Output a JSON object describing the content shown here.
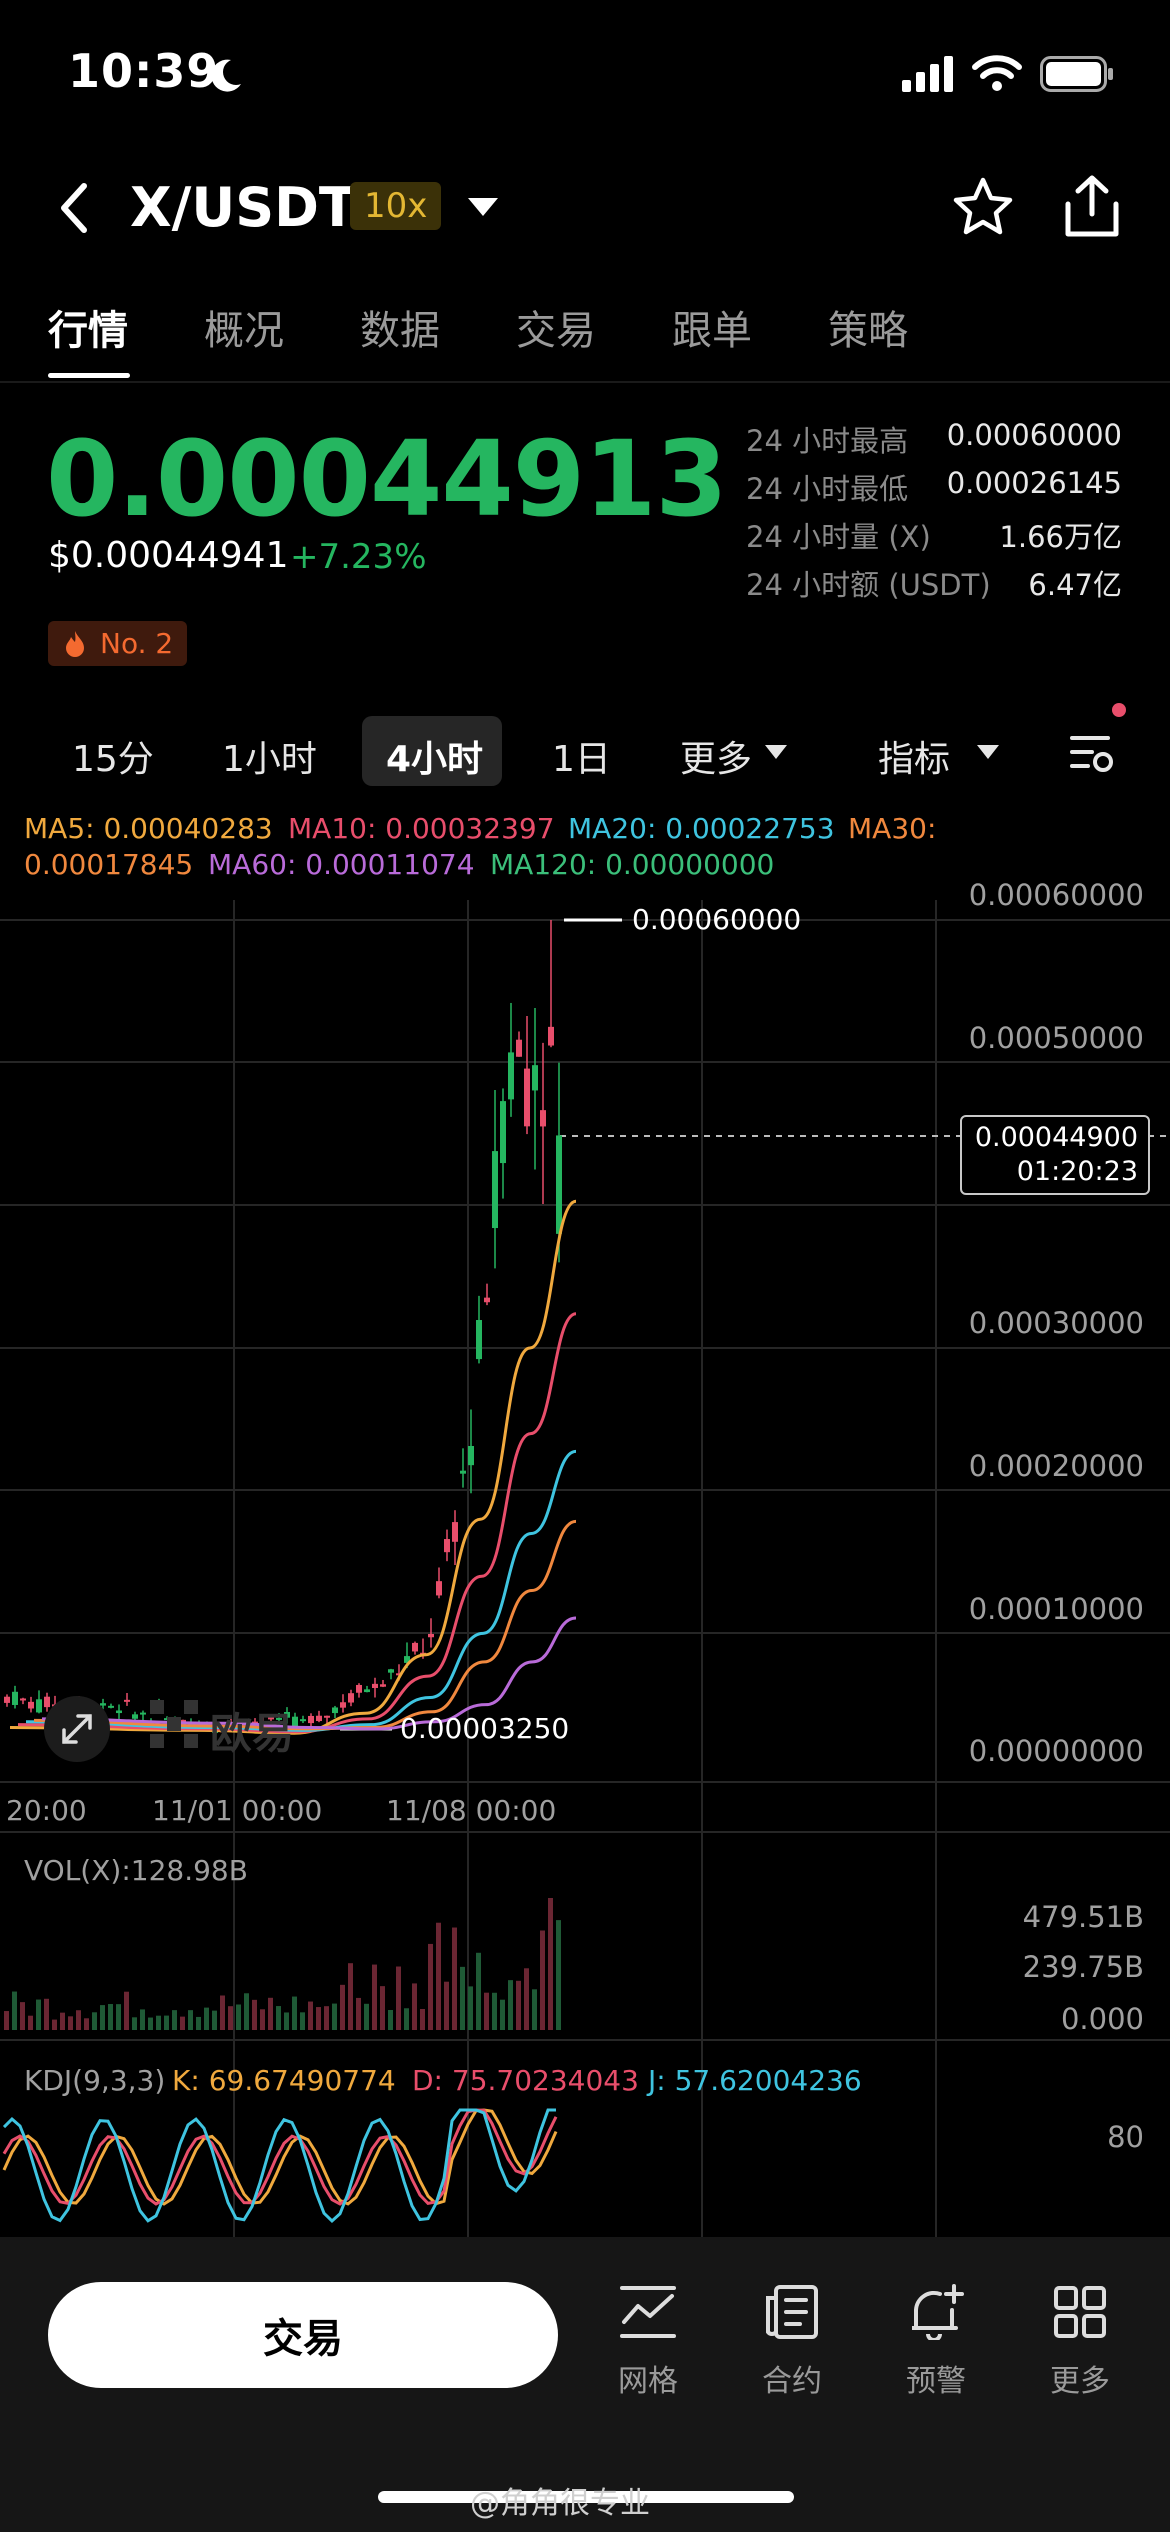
{
  "status_bar": {
    "time": "10:39"
  },
  "nav": {
    "title": "X/USDT",
    "leverage": "10x"
  },
  "tabs": [
    "行情",
    "概况",
    "数据",
    "交易",
    "跟单",
    "策略"
  ],
  "ticker": {
    "last_price": "0.00044913",
    "usd_price": "$0.00044941",
    "change_pct": "+7.23%",
    "rank": "No. 2"
  },
  "stats": [
    {
      "label": "24 小时最高",
      "value": "0.00060000"
    },
    {
      "label": "24 小时最低",
      "value": "0.00026145"
    },
    {
      "label": "24 小时量 (X)",
      "value": "1.66万亿"
    },
    {
      "label": "24 小时额 (USDT)",
      "value": "6.47亿"
    }
  ],
  "intervals": [
    "15分",
    "1小时",
    "4小时",
    "1日",
    "更多",
    "指标"
  ],
  "active_interval": "4小时",
  "ma_legend": {
    "ma5": "MA5: 0.00040283",
    "ma10": "MA10: 0.00032397",
    "ma20": "MA20: 0.00022753",
    "ma30_label": "MA30:",
    "ma30_value": "0.00017845",
    "ma60": "MA60: 0.00011074",
    "ma120": "MA120: 0.00000000"
  },
  "chart": {
    "y_ticks": [
      "0.00060000",
      "0.00050000",
      "0.00030000",
      "0.00020000",
      "0.00010000",
      "0.00000000"
    ],
    "x_ticks": [
      "20:00",
      "11/01 00:00",
      "11/08 00:00"
    ],
    "high_label": "0.00060000",
    "low_label": "0.00003250",
    "current_price": "0.00044900",
    "countdown": "01:20:23",
    "watermark": "欧易"
  },
  "volume": {
    "label": "VOL(X):128.98B",
    "ticks": [
      "479.51B",
      "239.75B",
      "0.000"
    ]
  },
  "kdj": {
    "name": "KDJ(9,3,3)",
    "k": "K: 69.67490774",
    "d": "D: 75.70234043",
    "j": "J: 57.62004236",
    "tick": "80"
  },
  "bottom": {
    "trade": "交易",
    "tools": [
      "网格",
      "合约",
      "预警",
      "更多"
    ],
    "watermark": "@角角很专业"
  },
  "colors": {
    "up": "#25b660",
    "down": "#e84e6b",
    "ma5": "#f0a93e",
    "ma10": "#e84e6b",
    "ma20": "#3fc4e0",
    "ma30": "#f0883e",
    "ma60": "#b96bd9",
    "ma120": "#3bbf7a"
  },
  "chart_data": {
    "type": "line",
    "price_axis_ticks": [
      0.0006,
      0.0005,
      0.0003,
      0.0002,
      0.0001,
      0.0
    ],
    "high": 0.0006,
    "low": 3.25e-05,
    "current": 0.000449,
    "series": [
      {
        "name": "MA5",
        "values": [
          3.4e-05,
          3.2e-05,
          3e-05,
          4.4e-05,
          8.5e-05,
          0.00018,
          0.0003,
          0.00040283
        ]
      },
      {
        "name": "MA10",
        "values": [
          3.6e-05,
          3.3e-05,
          3.1e-05,
          4e-05,
          7e-05,
          0.00014,
          0.00024,
          0.00032397
        ]
      },
      {
        "name": "MA20",
        "values": [
          3.8e-05,
          3.4e-05,
          3.2e-05,
          3.6e-05,
          5.5e-05,
          0.0001,
          0.00017,
          0.00022753
        ]
      },
      {
        "name": "MA30",
        "values": [
          3.9e-05,
          3.5e-05,
          3.3e-05,
          3.4e-05,
          4.5e-05,
          8e-05,
          0.00013,
          0.00017845
        ]
      },
      {
        "name": "MA60",
        "values": [
          4e-05,
          3.7e-05,
          3.4e-05,
          3.3e-05,
          3.8e-05,
          5e-05,
          8e-05,
          0.00011074
        ]
      }
    ]
  }
}
